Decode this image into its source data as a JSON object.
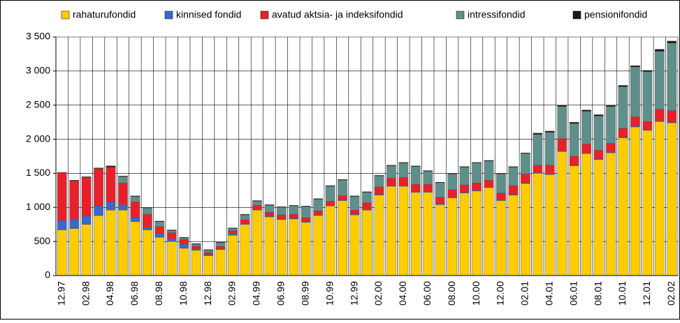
{
  "chart_data": {
    "type": "stacked-bar",
    "categories": [
      "12.97",
      null,
      "02.98",
      null,
      "04.98",
      null,
      "06.98",
      null,
      "08.98",
      null,
      "10.98",
      null,
      "12.98",
      null,
      "02.99",
      null,
      "04.99",
      null,
      "06.99",
      null,
      "08.99",
      null,
      "10.99",
      null,
      "12.99",
      null,
      "02.00",
      null,
      "04.00",
      null,
      "06.00",
      null,
      "08.00",
      null,
      "10.00",
      null,
      "12.00",
      null,
      "02.01",
      null,
      "04.01",
      null,
      "06.01",
      null,
      "08.01",
      null,
      "10.01",
      null,
      "12.01",
      null,
      "02.02"
    ],
    "series": [
      {
        "name": "rahaturufondid",
        "color": "#ffcc00",
        "values": [
          670,
          690,
          750,
          880,
          960,
          960,
          790,
          670,
          560,
          500,
          400,
          370,
          290,
          380,
          590,
          750,
          960,
          860,
          820,
          830,
          780,
          880,
          1020,
          1100,
          890,
          960,
          1180,
          1310,
          1310,
          1220,
          1220,
          1040,
          1140,
          1210,
          1240,
          1290,
          1100,
          1180,
          1350,
          1500,
          1480,
          1820,
          1610,
          1790,
          1700,
          1800,
          2020,
          2180,
          2130,
          2260,
          2240
        ]
      },
      {
        "name": "kinnised fondid",
        "color": "#3a68c4",
        "values": [
          140,
          140,
          120,
          140,
          120,
          80,
          60,
          40,
          60,
          40,
          60,
          20,
          20,
          10,
          20,
          10,
          10,
          10,
          10,
          10,
          10,
          10,
          10,
          10,
          10,
          10,
          10,
          10,
          10,
          10,
          10,
          10,
          10,
          10,
          10,
          10,
          10,
          10,
          10,
          10,
          10,
          10,
          10,
          10,
          10,
          10,
          10,
          10,
          10,
          10,
          10
        ]
      },
      {
        "name": "avatud aktsia- ja indeksifondid",
        "color": "#e8202a",
        "values": [
          700,
          560,
          570,
          550,
          510,
          320,
          230,
          190,
          100,
          90,
          70,
          40,
          30,
          40,
          50,
          60,
          60,
          60,
          60,
          60,
          60,
          60,
          60,
          60,
          60,
          100,
          110,
          110,
          120,
          110,
          110,
          100,
          110,
          110,
          110,
          100,
          100,
          130,
          130,
          110,
          130,
          180,
          130,
          130,
          130,
          130,
          130,
          140,
          120,
          170,
          170
        ]
      },
      {
        "name": "intressifondid",
        "color": "#5f8f8a",
        "values": [
          0,
          0,
          0,
          0,
          0,
          90,
          80,
          90,
          70,
          30,
          20,
          30,
          30,
          50,
          30,
          70,
          60,
          100,
          110,
          120,
          160,
          170,
          220,
          230,
          200,
          150,
          160,
          180,
          210,
          260,
          190,
          210,
          230,
          260,
          290,
          280,
          280,
          270,
          300,
          450,
          480,
          470,
          480,
          480,
          500,
          540,
          610,
          730,
          730,
          850,
          990
        ]
      },
      {
        "name": "pensionifondid",
        "color": "#1a1a1a",
        "values": [
          5,
          10,
          10,
          10,
          20,
          10,
          10,
          10,
          10,
          10,
          10,
          10,
          10,
          10,
          10,
          10,
          10,
          10,
          10,
          10,
          10,
          10,
          10,
          10,
          10,
          10,
          10,
          10,
          10,
          10,
          10,
          10,
          10,
          10,
          10,
          10,
          10,
          10,
          10,
          20,
          20,
          20,
          20,
          20,
          20,
          20,
          20,
          20,
          20,
          30,
          30
        ]
      }
    ],
    "ylim": [
      0,
      3500
    ],
    "yticks": [
      0,
      {
        "value": 500,
        "label": "500"
      },
      {
        "value": 1000,
        "label": "1 000"
      },
      {
        "value": 1500,
        "label": "1 500"
      },
      {
        "value": 2000,
        "label": "2 000"
      },
      {
        "value": 2500,
        "label": "2 500"
      },
      {
        "value": 3000,
        "label": "3 000"
      },
      {
        "value": 3500,
        "label": "3 500"
      }
    ],
    "grid": true
  }
}
